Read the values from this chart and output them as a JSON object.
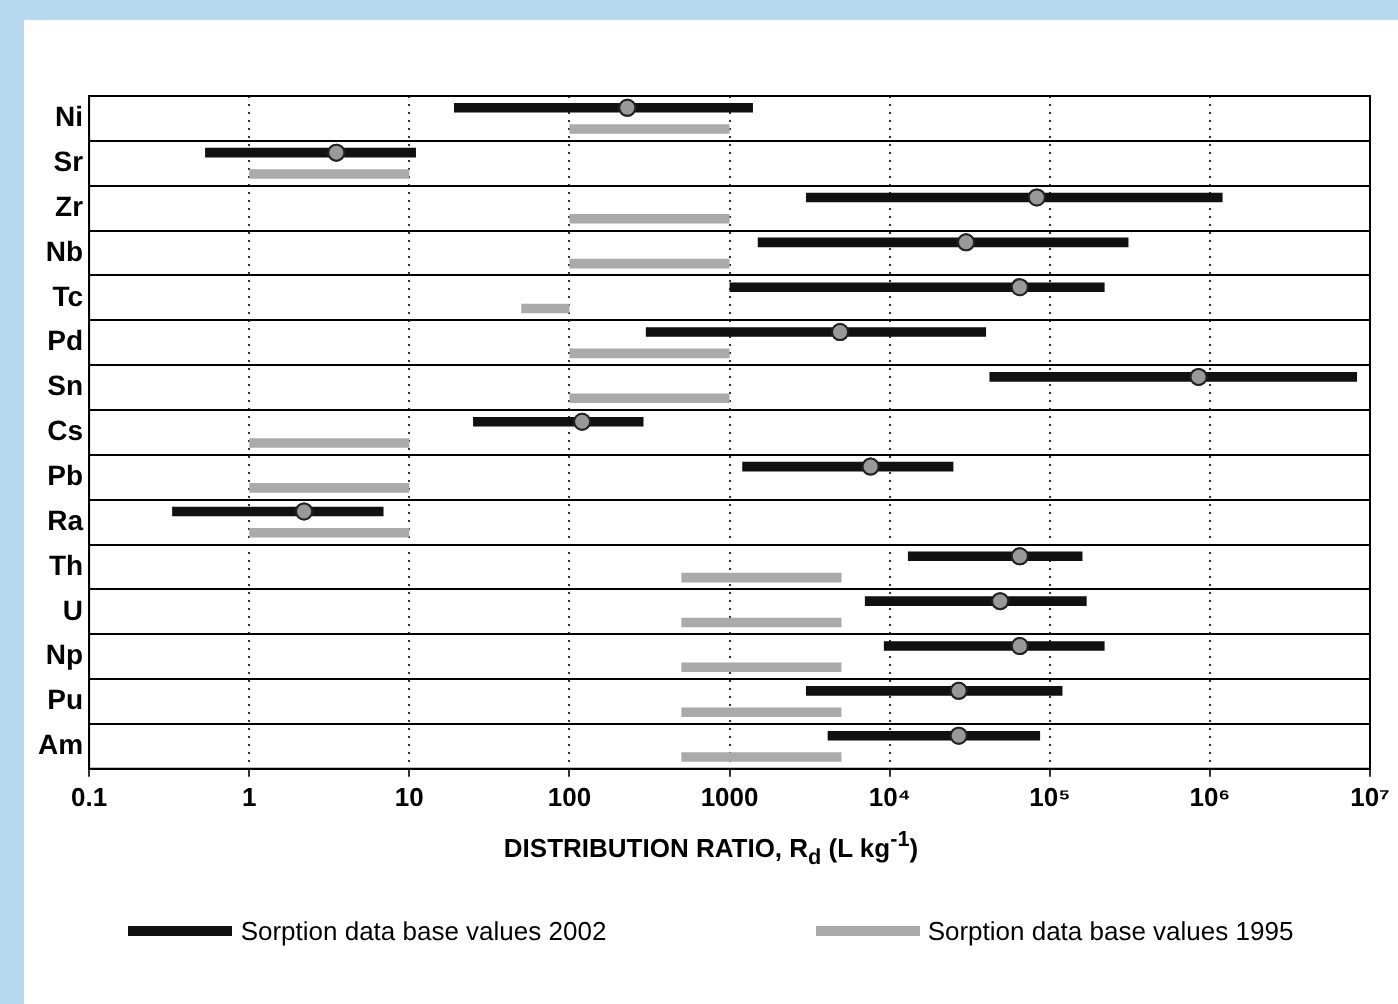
{
  "chart_data": {
    "type": "bar",
    "orientation": "horizontal",
    "xlabel": "DISTRIBUTION RATIO, R$_{d}$ (L kg$^{-1}$)",
    "categories": [
      "Ni",
      "Sr",
      "Zr",
      "Nb",
      "Tc",
      "Pd",
      "Sn",
      "Cs",
      "Pb",
      "Ra",
      "Th",
      "U",
      "Np",
      "Pu",
      "Am"
    ],
    "series": [
      {
        "name": "Sorption data base values 2002",
        "color": "#111111",
        "base": [
          19,
          0.53,
          3000,
          1500,
          1000,
          300,
          42000,
          25,
          1200,
          0.33,
          13000,
          7000,
          9200,
          3000,
          4100
        ],
        "values": [
          1381,
          10.47,
          1197000,
          308500,
          219000,
          39700,
          8258000,
          265,
          23800,
          6.57,
          147000,
          163000,
          210800,
          117000,
          82900
        ]
      },
      {
        "name": "Sorption data base values 1995",
        "color": "#aaaaaa",
        "base": [
          100,
          1,
          100,
          100,
          50,
          100,
          100,
          1,
          1,
          1,
          500,
          500,
          500,
          500,
          500
        ],
        "values": [
          900,
          9,
          900,
          900,
          50,
          900,
          900,
          9,
          9,
          9,
          4500,
          4500,
          4500,
          4500,
          4500
        ]
      },
      {
        "type": "scatter",
        "color": "#999999",
        "values": [
          230,
          3.5,
          83000,
          30000,
          65000,
          4900,
          850000,
          120,
          7600,
          2.2,
          65000,
          49000,
          65000,
          27000,
          27000
        ]
      }
    ],
    "log": "x",
    "xlim": [
      0.1,
      10000000
    ],
    "xticks": [
      0.1,
      1,
      10,
      100,
      1000,
      {
        "value": 10000,
        "label": "10⁴"
      },
      {
        "value": 100000,
        "label": "10⁵"
      },
      {
        "value": 1000000,
        "label": "10⁶"
      },
      {
        "value": 10000000,
        "label": "10⁷"
      }
    ],
    "grid": true,
    "legend": "bottom",
    "marker": "circle"
  }
}
